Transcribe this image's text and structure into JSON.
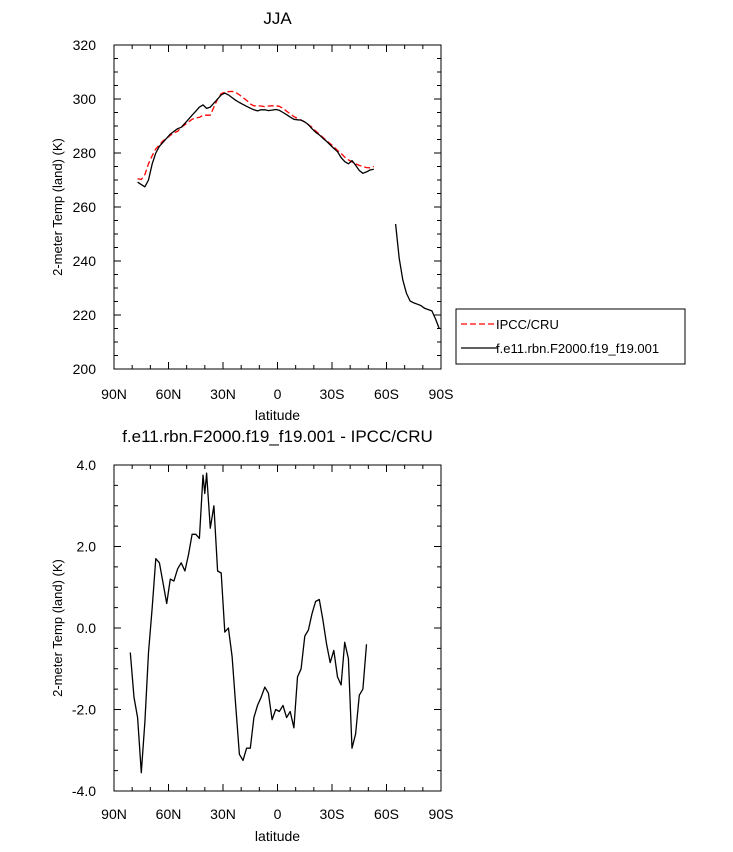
{
  "chart_data": [
    {
      "type": "line",
      "title": "JJA",
      "xlabel": "latitude",
      "ylabel": "2-meter Temp (land) (K)",
      "xlim": [
        90,
        -90
      ],
      "ylim": [
        200,
        320
      ],
      "x_ticks": [
        {
          "value": 90,
          "label": "90N"
        },
        {
          "value": 60,
          "label": "60N"
        },
        {
          "value": 30,
          "label": "30N"
        },
        {
          "value": 0,
          "label": "0"
        },
        {
          "value": -30,
          "label": "30S"
        },
        {
          "value": -60,
          "label": "60S"
        },
        {
          "value": -90,
          "label": "90S"
        }
      ],
      "y_ticks": [
        {
          "value": 200,
          "label": "200"
        },
        {
          "value": 220,
          "label": "220"
        },
        {
          "value": 240,
          "label": "240"
        },
        {
          "value": 260,
          "label": "260"
        },
        {
          "value": 280,
          "label": "280"
        },
        {
          "value": 300,
          "label": "300"
        },
        {
          "value": 320,
          "label": "320"
        }
      ],
      "legend": {
        "placement": "right"
      },
      "series": [
        {
          "name": "IPCC/CRU",
          "color": "#ff0000",
          "dash": true,
          "segments": [
            [
              [
                77,
                270.5
              ],
              [
                75,
                270.2
              ],
              [
                73,
                272
              ],
              [
                71,
                276
              ],
              [
                69,
                279
              ],
              [
                67,
                281.5
              ],
              [
                65,
                283
              ],
              [
                63,
                284.5
              ],
              [
                61,
                285.5
              ],
              [
                59,
                286.5
              ],
              [
                57,
                287.5
              ],
              [
                55,
                288
              ],
              [
                53,
                289.5
              ],
              [
                51,
                290.5
              ],
              [
                49,
                291.5
              ],
              [
                47,
                292.5
              ],
              [
                45,
                293
              ],
              [
                43,
                293.2
              ],
              [
                41,
                294
              ],
              [
                39,
                294
              ],
              [
                37,
                294
              ],
              [
                35,
                297
              ],
              [
                33,
                300
              ],
              [
                31,
                302
              ],
              [
                29,
                302.5
              ],
              [
                27,
                302.7
              ],
              [
                25,
                302.8
              ],
              [
                23,
                302.5
              ],
              [
                21,
                301.5
              ],
              [
                19,
                300.5
              ],
              [
                17,
                299.5
              ],
              [
                15,
                298.2
              ],
              [
                13,
                297.5
              ],
              [
                11,
                297.5
              ],
              [
                9,
                297.4
              ],
              [
                7,
                297.2
              ],
              [
                5,
                297.4
              ],
              [
                3,
                297.5
              ],
              [
                1,
                297.5
              ],
              [
                -1,
                297.3
              ],
              [
                -3,
                296.5
              ],
              [
                -5,
                295.5
              ],
              [
                -7,
                294.5
              ],
              [
                -9,
                293.5
              ],
              [
                -11,
                292.8
              ],
              [
                -13,
                292.2
              ],
              [
                -15,
                291.5
              ],
              [
                -17,
                290.5
              ],
              [
                -19,
                289.5
              ],
              [
                -21,
                288.2
              ],
              [
                -23,
                287
              ],
              [
                -25,
                285.8
              ],
              [
                -27,
                284.5
              ],
              [
                -29,
                283.5
              ],
              [
                -31,
                282.3
              ],
              [
                -33,
                281
              ],
              [
                -35,
                279.8
              ],
              [
                -37,
                278.5
              ],
              [
                -39,
                277.5
              ],
              [
                -41,
                276.7
              ],
              [
                -43,
                276
              ],
              [
                -45,
                275.4
              ],
              [
                -47,
                275
              ],
              [
                -49,
                274.6
              ],
              [
                -51,
                274.5
              ],
              [
                -53,
                275
              ]
            ]
          ]
        },
        {
          "name": "f.e11.rbn.F2000.f19_f19.001",
          "color": "#000000",
          "dash": false,
          "segments": [
            [
              [
                77,
                269.2
              ],
              [
                75,
                268.3
              ],
              [
                73,
                267.5
              ],
              [
                71,
                270
              ],
              [
                69,
                276
              ],
              [
                67,
                280
              ],
              [
                65,
                282.5
              ],
              [
                63,
                284
              ],
              [
                61,
                285.5
              ],
              [
                59,
                287
              ],
              [
                57,
                288
              ],
              [
                55,
                289
              ],
              [
                53,
                289.5
              ],
              [
                51,
                291
              ],
              [
                49,
                292.5
              ],
              [
                47,
                294
              ],
              [
                45,
                295.5
              ],
              [
                43,
                297
              ],
              [
                41,
                297.8
              ],
              [
                39,
                296.5
              ],
              [
                37,
                297
              ],
              [
                35,
                298.5
              ],
              [
                33,
                300
              ],
              [
                31,
                301.5
              ],
              [
                29,
                302.2
              ],
              [
                27,
                301.5
              ],
              [
                25,
                300.5
              ],
              [
                23,
                299.5
              ],
              [
                21,
                298.7
              ],
              [
                19,
                298
              ],
              [
                17,
                297.3
              ],
              [
                15,
                296.6
              ],
              [
                13,
                296
              ],
              [
                11,
                295.6
              ],
              [
                9,
                296
              ],
              [
                7,
                296
              ],
              [
                5,
                295.7
              ],
              [
                3,
                295.9
              ],
              [
                1,
                296.1
              ],
              [
                -1,
                295.8
              ],
              [
                -3,
                295
              ],
              [
                -5,
                294.2
              ],
              [
                -7,
                293.3
              ],
              [
                -9,
                292.5
              ],
              [
                -11,
                292.3
              ],
              [
                -13,
                292.2
              ],
              [
                -15,
                291.5
              ],
              [
                -17,
                290.5
              ],
              [
                -19,
                289
              ],
              [
                -21,
                287.7
              ],
              [
                -23,
                286.7
              ],
              [
                -25,
                285.5
              ],
              [
                -27,
                284.3
              ],
              [
                -29,
                283
              ],
              [
                -31,
                281.7
              ],
              [
                -33,
                280.5
              ],
              [
                -35,
                278.3
              ],
              [
                -37,
                276.8
              ],
              [
                -39,
                276
              ],
              [
                -41,
                277.2
              ],
              [
                -43,
                275.5
              ],
              [
                -45,
                273.5
              ],
              [
                -47,
                272.5
              ],
              [
                -49,
                273
              ],
              [
                -51,
                273.7
              ],
              [
                -53,
                274
              ]
            ],
            [
              [
                -65,
                253.7
              ],
              [
                -67,
                241
              ],
              [
                -69,
                233
              ],
              [
                -71,
                228
              ],
              [
                -73,
                225.2
              ],
              [
                -75,
                224.5
              ],
              [
                -77,
                224
              ],
              [
                -79,
                223.5
              ],
              [
                -81,
                222.5
              ],
              [
                -83,
                222
              ],
              [
                -85,
                221.5
              ],
              [
                -87,
                218.5
              ],
              [
                -89,
                215
              ]
            ]
          ]
        }
      ]
    },
    {
      "type": "line",
      "title": "f.e11.rbn.F2000.f19_f19.001 - IPCC/CRU",
      "xlabel": "latitude",
      "ylabel": "2-meter Temp (land) (K)",
      "xlim": [
        90,
        -90
      ],
      "ylim": [
        -4.0,
        4.0
      ],
      "x_ticks": [
        {
          "value": 90,
          "label": "90N"
        },
        {
          "value": 60,
          "label": "60N"
        },
        {
          "value": 30,
          "label": "30N"
        },
        {
          "value": 0,
          "label": "0"
        },
        {
          "value": -30,
          "label": "30S"
        },
        {
          "value": -60,
          "label": "60S"
        },
        {
          "value": -90,
          "label": "90S"
        }
      ],
      "y_ticks": [
        {
          "value": 4.0,
          "label": "4.0"
        },
        {
          "value": 2.0,
          "label": "2.0"
        },
        {
          "value": 0.0,
          "label": "0.0"
        },
        {
          "value": -2.0,
          "label": "-2.0"
        },
        {
          "value": -4.0,
          "label": "-4.0"
        }
      ],
      "series": [
        {
          "color": "#000000",
          "dash": false,
          "segments": [
            [
              [
                81,
                -0.6
              ],
              [
                79,
                -1.7
              ],
              [
                77,
                -2.2
              ],
              [
                75,
                -3.55
              ],
              [
                73,
                -2.3
              ],
              [
                71,
                -0.6
              ],
              [
                69,
                0.5
              ],
              [
                67,
                1.7
              ],
              [
                65,
                1.6
              ],
              [
                63,
                1.1
              ],
              [
                61,
                0.6
              ],
              [
                59,
                1.2
              ],
              [
                57,
                1.15
              ],
              [
                55,
                1.45
              ],
              [
                53,
                1.6
              ],
              [
                51,
                1.4
              ],
              [
                49,
                1.8
              ],
              [
                47,
                2.3
              ],
              [
                45,
                2.3
              ],
              [
                43,
                2.2
              ],
              [
                41,
                3.75
              ],
              [
                40,
                3.3
              ],
              [
                39,
                3.8
              ],
              [
                37,
                2.45
              ],
              [
                35,
                3.0
              ],
              [
                33,
                1.4
              ],
              [
                31,
                1.35
              ],
              [
                29,
                -0.1
              ],
              [
                27,
                0.0
              ],
              [
                25,
                -0.7
              ],
              [
                23,
                -1.9
              ],
              [
                21,
                -3.1
              ],
              [
                19,
                -3.25
              ],
              [
                17,
                -2.95
              ],
              [
                15,
                -2.95
              ],
              [
                13,
                -2.2
              ],
              [
                11,
                -1.9
              ],
              [
                9,
                -1.7
              ],
              [
                7,
                -1.45
              ],
              [
                5,
                -1.6
              ],
              [
                3,
                -2.25
              ],
              [
                1,
                -2.0
              ],
              [
                -1,
                -2.05
              ],
              [
                -3,
                -1.9
              ],
              [
                -5,
                -2.2
              ],
              [
                -7,
                -2.05
              ],
              [
                -9,
                -2.45
              ],
              [
                -11,
                -1.2
              ],
              [
                -13,
                -1.0
              ],
              [
                -15,
                -0.2
              ],
              [
                -17,
                -0.05
              ],
              [
                -19,
                0.35
              ],
              [
                -21,
                0.65
              ],
              [
                -23,
                0.7
              ],
              [
                -25,
                0.2
              ],
              [
                -27,
                -0.4
              ],
              [
                -29,
                -0.85
              ],
              [
                -31,
                -0.55
              ],
              [
                -33,
                -1.2
              ],
              [
                -35,
                -1.4
              ],
              [
                -37,
                -0.35
              ],
              [
                -39,
                -0.75
              ],
              [
                -41,
                -2.95
              ],
              [
                -43,
                -2.6
              ],
              [
                -45,
                -1.65
              ],
              [
                -47,
                -1.5
              ],
              [
                -49,
                -0.4
              ]
            ]
          ]
        }
      ]
    }
  ]
}
